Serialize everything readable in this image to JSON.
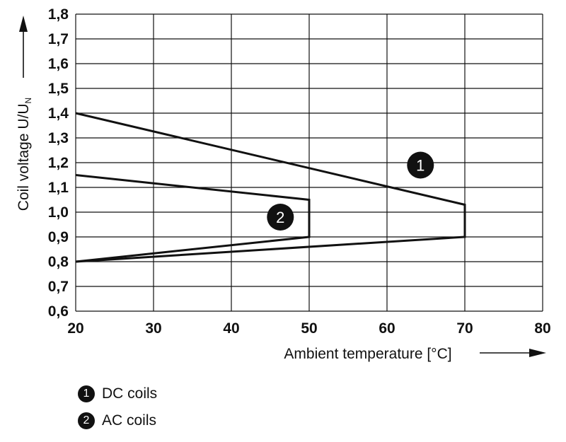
{
  "chart_data": {
    "type": "line",
    "xlabel": "Ambient temperature [°C]",
    "ylabel_main": "Coil voltage U/U",
    "ylabel_sub": "N",
    "xlim": [
      20,
      80
    ],
    "ylim": [
      0.6,
      1.8
    ],
    "x_ticks": [
      "20",
      "30",
      "40",
      "50",
      "60",
      "70",
      "80"
    ],
    "y_ticks": [
      "0,6",
      "0,7",
      "0,8",
      "0,9",
      "1,0",
      "1,1",
      "1,2",
      "1,3",
      "1,4",
      "1,5",
      "1,6",
      "1,7",
      "1,8"
    ],
    "grid": true,
    "series": [
      {
        "marker": "1",
        "name": "DC coils",
        "points": [
          [
            20,
            1.4
          ],
          [
            70,
            1.03
          ],
          [
            70,
            0.9
          ],
          [
            20,
            0.8
          ]
        ],
        "label_at": [
          64.3,
          1.19
        ]
      },
      {
        "marker": "2",
        "name": "AC coils",
        "points": [
          [
            20,
            1.15
          ],
          [
            50,
            1.05
          ],
          [
            50,
            0.9
          ],
          [
            20,
            0.8
          ]
        ],
        "label_at": [
          46.3,
          0.98
        ]
      }
    ]
  }
}
